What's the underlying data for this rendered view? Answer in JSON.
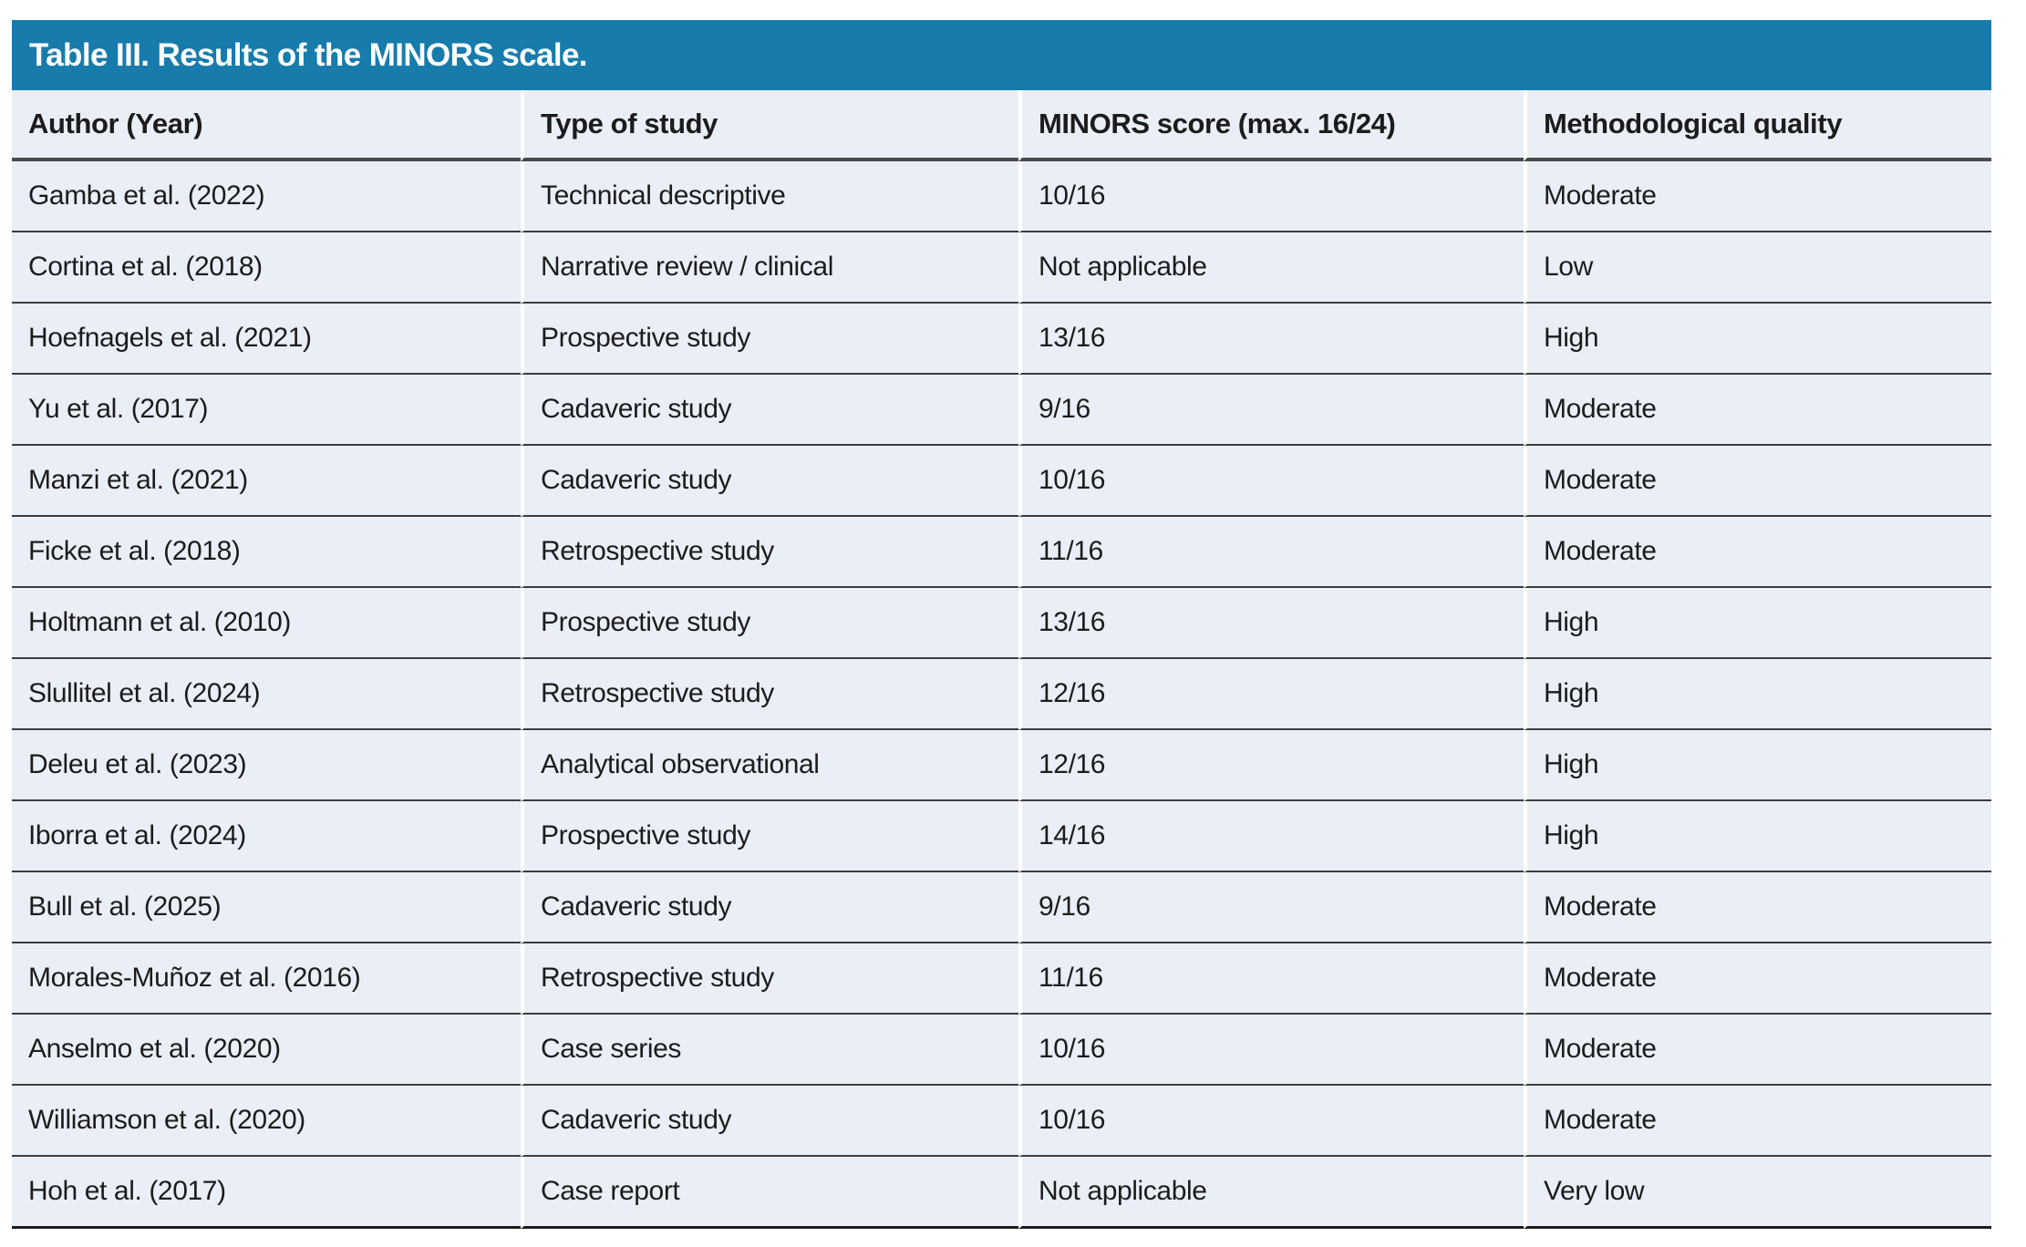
{
  "table": {
    "title": "Table III. Results of the MINORS scale.",
    "columns": [
      "Author (Year)",
      "Type of study",
      "MINORS score (max. 16/24)",
      "Methodological quality"
    ],
    "rows": [
      [
        "Gamba et al. (2022)",
        "Technical descriptive",
        "10/16",
        "Moderate"
      ],
      [
        "Cortina et al. (2018)",
        "Narrative review / clinical",
        "Not applicable",
        "Low"
      ],
      [
        "Hoefnagels et al. (2021)",
        "Prospective study",
        "13/16",
        "High"
      ],
      [
        "Yu et al. (2017)",
        "Cadaveric study",
        "9/16",
        "Moderate"
      ],
      [
        "Manzi et al. (2021)",
        "Cadaveric study",
        "10/16",
        "Moderate"
      ],
      [
        "Ficke et al. (2018)",
        "Retrospective study",
        "11/16",
        "Moderate"
      ],
      [
        "Holtmann et al. (2010)",
        "Prospective study",
        "13/16",
        "High"
      ],
      [
        "Slullitel et al. (2024)",
        "Retrospective study",
        "12/16",
        "High"
      ],
      [
        "Deleu et al. (2023)",
        "Analytical observational",
        "12/16",
        "High"
      ],
      [
        "Iborra et al. (2024)",
        "Prospective study",
        "14/16",
        "High"
      ],
      [
        "Bull et al. (2025)",
        "Cadaveric study",
        "9/16",
        "Moderate"
      ],
      [
        "Morales-Muñoz et al. (2016)",
        "Retrospective study",
        "11/16",
        "Moderate"
      ],
      [
        "Anselmo et al. (2020)",
        "Case series",
        "10/16",
        "Moderate"
      ],
      [
        "Williamson et al. (2020)",
        "Cadaveric study",
        "10/16",
        "Moderate"
      ],
      [
        "Hoh et al. (2017)",
        "Case report",
        "Not applicable",
        "Very low"
      ]
    ]
  },
  "colors": {
    "title_bar_bg": "#177CAC",
    "title_text": "#FFFFFF",
    "row_bg": "#EAEEF7",
    "row_separator": "#3C3C3C",
    "header_underline": "#4A4A4A",
    "bottom_border": "#1C1C1C",
    "text": "#1C1C1C",
    "page_bg": "#FFFFFF"
  }
}
